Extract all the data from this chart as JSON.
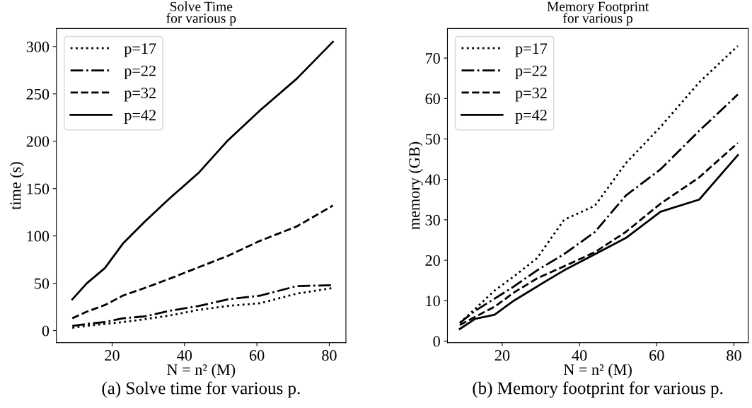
{
  "chart_data": [
    {
      "type": "line",
      "title": "Solve Time\nfor various p",
      "xlabel": "N = n² (M)",
      "ylabel": "time (s)",
      "x": [
        9,
        13,
        18,
        23,
        29,
        36,
        44,
        52,
        61,
        71,
        81
      ],
      "xlim": [
        4.6,
        84.6
      ],
      "xticks": [
        20,
        40,
        60,
        80
      ],
      "ylim": [
        -12.8,
        319
      ],
      "yticks": [
        0,
        50,
        100,
        150,
        200,
        250,
        300
      ],
      "grid": false,
      "legend": "top left",
      "series": [
        {
          "name": "p=17",
          "color": "#000000",
          "line_style": "dotted",
          "values": [
            3,
            5,
            7,
            9,
            12,
            16,
            22,
            26,
            29,
            39,
            45
          ]
        },
        {
          "name": "p=22",
          "color": "#000000",
          "line_style": "dashdot",
          "values": [
            5,
            7,
            9,
            13,
            15,
            21,
            26,
            33,
            37,
            47,
            48
          ]
        },
        {
          "name": "p=32",
          "color": "#000000",
          "line_style": "dashed",
          "values": [
            13,
            20,
            27,
            37,
            45,
            55,
            67,
            79,
            95,
            110,
            132
          ]
        },
        {
          "name": "p=42",
          "color": "#000000",
          "line_style": "solid",
          "values": [
            33,
            50,
            66,
            92,
            115,
            140,
            167,
            201,
            233,
            266,
            305
          ]
        }
      ],
      "annotations": [
        "(a) Solve time for various p."
      ]
    },
    {
      "type": "line",
      "title": "Memory Footprint\nfor various p",
      "xlabel": "N = n² (M)",
      "ylabel": "memory (GB)",
      "x": [
        9,
        13,
        18,
        23,
        29,
        36,
        44,
        52,
        61,
        71,
        81
      ],
      "xlim": [
        5.8,
        83.7
      ],
      "xticks": [
        20,
        40,
        60,
        80
      ],
      "ylim": [
        -0.4,
        77.3
      ],
      "yticks": [
        0,
        10,
        20,
        30,
        40,
        50,
        60,
        70
      ],
      "grid": false,
      "legend": "top left",
      "series": [
        {
          "name": "p=17",
          "color": "#000000",
          "line_style": "dotted",
          "values": [
            4.5,
            8,
            12.5,
            16,
            20.5,
            30,
            33.5,
            44,
            53,
            64,
            73
          ]
        },
        {
          "name": "p=22",
          "color": "#000000",
          "line_style": "dashdot",
          "values": [
            4.5,
            7.5,
            10.5,
            13.5,
            17.5,
            21.5,
            27,
            36,
            42.5,
            52,
            61
          ]
        },
        {
          "name": "p=32",
          "color": "#000000",
          "line_style": "dashed",
          "values": [
            4,
            6,
            8.5,
            12,
            15.5,
            18.5,
            22,
            27,
            34,
            40.5,
            49
          ]
        },
        {
          "name": "p=42",
          "color": "#000000",
          "line_style": "solid",
          "values": [
            3,
            5.5,
            6.5,
            10,
            13.5,
            17.5,
            21.5,
            25.5,
            32,
            35,
            46
          ]
        }
      ],
      "annotations": [
        "(b) Memory footprint for various p."
      ]
    }
  ]
}
